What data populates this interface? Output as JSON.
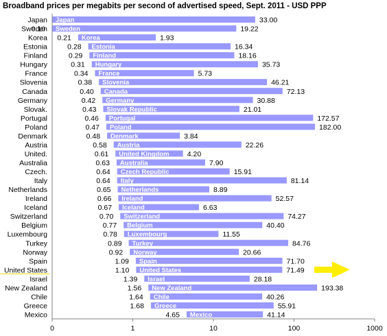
{
  "chart_data": {
    "type": "bar",
    "orientation": "horizontal",
    "title": "Broadband prices per megabits per second of advertised speed, Sept. 2011 - USD PPP",
    "xscale": "log",
    "xlim": [
      0.1,
      1000
    ],
    "xticks": [
      "0",
      "1",
      "10",
      "100",
      "1000"
    ],
    "grid": false,
    "bar_color": "#9999ff",
    "arrow_color": "#ffee00",
    "highlighted_row": "United States",
    "rows": [
      {
        "label": "Japan",
        "inner": "Japan",
        "low": null,
        "high": 33.0,
        "low_text": "",
        "high_text": "33.00"
      },
      {
        "label": "Sweden",
        "inner": "Sweden",
        "low": 0.1,
        "high": 19.22,
        "low_text": "0.10",
        "high_text": "19.22"
      },
      {
        "label": "Korea",
        "inner": "Korea",
        "low": 0.21,
        "high": 1.93,
        "low_text": "0.21",
        "high_text": "1.93"
      },
      {
        "label": "Estonia",
        "inner": "Estonia",
        "low": 0.28,
        "high": 16.34,
        "low_text": "0.28",
        "high_text": "16.34"
      },
      {
        "label": "Finland",
        "inner": "Finland",
        "low": 0.29,
        "high": 18.16,
        "low_text": "0.29",
        "high_text": "18.16"
      },
      {
        "label": "Hungary",
        "inner": "Hungary",
        "low": 0.31,
        "high": 35.73,
        "low_text": "0.31",
        "high_text": "35.73"
      },
      {
        "label": "France",
        "inner": "France",
        "low": 0.34,
        "high": 5.73,
        "low_text": "0.34",
        "high_text": "5.73"
      },
      {
        "label": "Slovenia",
        "inner": "Slovenia",
        "low": 0.38,
        "high": 46.21,
        "low_text": "0.38",
        "high_text": "46.21"
      },
      {
        "label": "Canada",
        "inner": "Canada",
        "low": 0.4,
        "high": 72.13,
        "low_text": "0.40",
        "high_text": "72.13"
      },
      {
        "label": "Germany",
        "inner": "Germany",
        "low": 0.42,
        "high": 30.88,
        "low_text": "0.42",
        "high_text": "30.88"
      },
      {
        "label": "Slovak.",
        "inner": "Slovak Republic",
        "low": 0.43,
        "high": 21.01,
        "low_text": "0.43",
        "high_text": "21.01"
      },
      {
        "label": "Portugal",
        "inner": "Portugal",
        "low": 0.46,
        "high": 172.57,
        "low_text": "0.46",
        "high_text": "172.57"
      },
      {
        "label": "Poland",
        "inner": "Poland",
        "low": 0.47,
        "high": 182.0,
        "low_text": "0.47",
        "high_text": "182.00"
      },
      {
        "label": "Denmark",
        "inner": "Denmark",
        "low": 0.48,
        "high": 3.84,
        "low_text": "0.48",
        "high_text": "3.84"
      },
      {
        "label": "Austria",
        "inner": "Austria",
        "low": 0.58,
        "high": 22.26,
        "low_text": "0.58",
        "high_text": "22.26"
      },
      {
        "label": "United.",
        "inner": "United Kingdom",
        "low": 0.61,
        "high": 4.2,
        "low_text": "0.61",
        "high_text": "4.20"
      },
      {
        "label": "Australia",
        "inner": "Australia",
        "low": 0.63,
        "high": 7.9,
        "low_text": "0.63",
        "high_text": "7.90"
      },
      {
        "label": "Czech.",
        "inner": "Czech Republic",
        "low": 0.64,
        "high": 15.91,
        "low_text": "0.64",
        "high_text": "15.91"
      },
      {
        "label": "Italy",
        "inner": "Italy",
        "low": 0.64,
        "high": 81.14,
        "low_text": "0.64",
        "high_text": "81.14"
      },
      {
        "label": "Netherlands",
        "inner": "Netherlands",
        "low": 0.65,
        "high": 8.89,
        "low_text": "0.65",
        "high_text": "8.89"
      },
      {
        "label": "Ireland",
        "inner": "Ireland",
        "low": 0.66,
        "high": 52.57,
        "low_text": "0.66",
        "high_text": "52.57"
      },
      {
        "label": "Iceland",
        "inner": "Iceland",
        "low": 0.67,
        "high": 6.63,
        "low_text": "0.67",
        "high_text": "6.63"
      },
      {
        "label": "Switzerland",
        "inner": "Switzerland",
        "low": 0.7,
        "high": 74.27,
        "low_text": "0.70",
        "high_text": "74.27"
      },
      {
        "label": "Belgium",
        "inner": "Belgium",
        "low": 0.77,
        "high": 40.4,
        "low_text": "0.77",
        "high_text": "40.40"
      },
      {
        "label": "Luxembourg",
        "inner": "Luxembourg",
        "low": 0.78,
        "high": 11.55,
        "low_text": "0.78",
        "high_text": "11.55"
      },
      {
        "label": "Turkey",
        "inner": "Turkey",
        "low": 0.89,
        "high": 84.76,
        "low_text": "0.89",
        "high_text": "84.76"
      },
      {
        "label": "Norway",
        "inner": "Norway",
        "low": 0.92,
        "high": 20.66,
        "low_text": "0.92",
        "high_text": "20.66"
      },
      {
        "label": "Spain",
        "inner": "Spain",
        "low": 1.09,
        "high": 71.7,
        "low_text": "1.09",
        "high_text": "71.70"
      },
      {
        "label": "United States",
        "inner": "United States",
        "low": 1.1,
        "high": 71.49,
        "low_text": "1.10",
        "high_text": "71.49"
      },
      {
        "label": "Israel",
        "inner": "Israel",
        "low": 1.39,
        "high": 28.18,
        "low_text": "1.39",
        "high_text": "28.18"
      },
      {
        "label": "New Zealand",
        "inner": "New Zealand",
        "low": 1.56,
        "high": 193.38,
        "low_text": "1.56",
        "high_text": "193.38"
      },
      {
        "label": "Chile",
        "inner": "Chile",
        "low": 1.64,
        "high": 40.26,
        "low_text": "1.64",
        "high_text": "40.26"
      },
      {
        "label": "Greece",
        "inner": "Greece",
        "low": 1.68,
        "high": 55.91,
        "low_text": "1.68",
        "high_text": "55.91"
      },
      {
        "label": "Mexico",
        "inner": "Mexico",
        "low": 4.65,
        "high": 41.14,
        "low_text": "4.65",
        "high_text": "41.14"
      }
    ]
  }
}
